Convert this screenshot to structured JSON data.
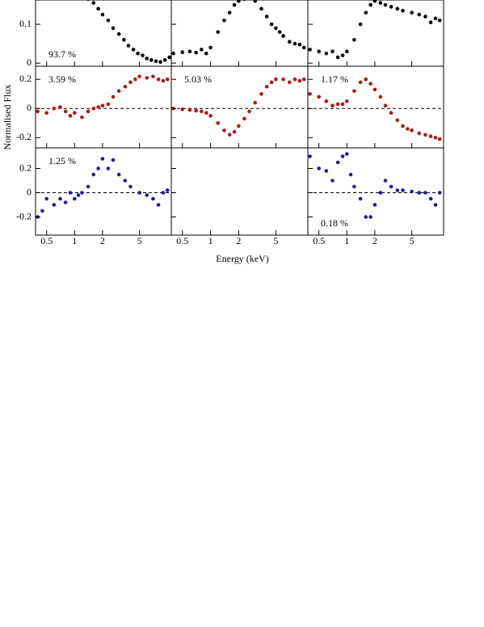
{
  "xlabel": "Energy (keV)",
  "ylabel": "Normalised Flux",
  "chart_data": [
    {
      "type": "scatter",
      "log_x": true,
      "xlim": [
        0.38,
        11
      ],
      "ylim": [
        -0.008,
        0.1625
      ],
      "xticks": [
        0.5,
        1,
        2,
        5
      ],
      "yticks": [
        0,
        0.1
      ],
      "annotation": "93.7 %",
      "annotation_corner": "bottom-left",
      "x": [
        1.4,
        1.6,
        1.8,
        2.0,
        2.3,
        2.6,
        3.0,
        3.4,
        3.8,
        4.3,
        4.8,
        5.4,
        6.0,
        6.7,
        7.5,
        8.4,
        9.4,
        10.5
      ],
      "series": [
        {
          "color": "#000000",
          "values": [
            0.165,
            0.155,
            0.14,
            0.125,
            0.11,
            0.09,
            0.075,
            0.06,
            0.045,
            0.035,
            0.025,
            0.02,
            0.012,
            0.008,
            0.005,
            0.003,
            0.008,
            0.015
          ]
        }
      ]
    },
    {
      "type": "scatter",
      "log_x": true,
      "xlim": [
        0.38,
        11
      ],
      "ylim": [
        -0.008,
        0.1625
      ],
      "xticks": [
        0.5,
        1,
        2,
        5
      ],
      "yticks": [
        0,
        0.1
      ],
      "x": [
        0.4,
        0.5,
        0.6,
        0.7,
        0.8,
        0.9,
        1.0,
        1.2,
        1.4,
        1.6,
        1.8,
        2.0,
        2.3,
        2.6,
        3.0,
        3.5,
        4.0,
        4.5,
        5.0,
        5.5,
        6.0,
        7.0,
        8.0,
        9.0,
        10
      ],
      "series": [
        {
          "color": "#000000",
          "values": [
            0.025,
            0.028,
            0.03,
            0.027,
            0.035,
            0.025,
            0.04,
            0.08,
            0.11,
            0.13,
            0.15,
            0.16,
            0.165,
            0.17,
            0.16,
            0.14,
            0.12,
            0.1,
            0.09,
            0.08,
            0.07,
            0.055,
            0.05,
            0.048,
            0.04
          ]
        }
      ]
    },
    {
      "type": "scatter",
      "log_x": true,
      "xlim": [
        0.38,
        11
      ],
      "ylim": [
        -0.008,
        0.1625
      ],
      "xticks": [
        0.5,
        1,
        2,
        5
      ],
      "yticks": [
        0,
        0.1
      ],
      "x": [
        0.4,
        0.5,
        0.6,
        0.7,
        0.8,
        0.9,
        1.0,
        1.2,
        1.4,
        1.6,
        1.8,
        2.0,
        2.3,
        2.6,
        3.0,
        3.5,
        4.0,
        5,
        6,
        7,
        8,
        9,
        10
      ],
      "series": [
        {
          "color": "#000000",
          "values": [
            0.035,
            0.03,
            0.025,
            0.03,
            0.015,
            0.02,
            0.03,
            0.06,
            0.1,
            0.13,
            0.15,
            0.16,
            0.155,
            0.15,
            0.145,
            0.14,
            0.135,
            0.13,
            0.125,
            0.12,
            0.105,
            0.115,
            0.11
          ]
        }
      ]
    },
    {
      "type": "scatter",
      "log_x": true,
      "xlim": [
        0.38,
        11
      ],
      "ylim": [
        -0.27,
        0.29
      ],
      "xticks": [
        0.5,
        1,
        2,
        5
      ],
      "yticks": [
        -0.2,
        0,
        0.2
      ],
      "zero_line": true,
      "annotation": "3.59 %",
      "annotation_corner": "top-left",
      "x": [
        0.4,
        0.5,
        0.6,
        0.7,
        0.8,
        0.9,
        1.0,
        1.2,
        1.4,
        1.6,
        1.8,
        2.0,
        2.3,
        2.6,
        3.0,
        3.5,
        4.0,
        4.5,
        5.0,
        6.0,
        7.0,
        8.0,
        9.0,
        10
      ],
      "series": [
        {
          "color": "#b01818",
          "values": [
            -0.02,
            -0.03,
            0,
            0.01,
            -0.02,
            -0.05,
            -0.03,
            -0.06,
            -0.02,
            0.0,
            0.01,
            0.02,
            0.03,
            0.08,
            0.12,
            0.15,
            0.18,
            0.2,
            0.22,
            0.21,
            0.22,
            0.2,
            0.19,
            0.2
          ]
        }
      ]
    },
    {
      "type": "scatter",
      "log_x": true,
      "xlim": [
        0.38,
        11
      ],
      "ylim": [
        -0.27,
        0.29
      ],
      "xticks": [
        0.5,
        1,
        2,
        5
      ],
      "yticks": [
        -0.2,
        0,
        0.2
      ],
      "zero_line": true,
      "annotation": "5.03 %",
      "annotation_corner": "top-left",
      "x": [
        0.4,
        0.5,
        0.6,
        0.7,
        0.8,
        0.9,
        1.0,
        1.2,
        1.4,
        1.6,
        1.8,
        2.0,
        2.3,
        2.6,
        3.0,
        3.5,
        4.0,
        4.5,
        5.0,
        6.0,
        7.0,
        8.0,
        9,
        10
      ],
      "series": [
        {
          "color": "#b01818",
          "values": [
            0,
            -0.005,
            -0.01,
            -0.015,
            -0.02,
            -0.03,
            -0.05,
            -0.1,
            -0.15,
            -0.18,
            -0.16,
            -0.12,
            -0.07,
            -0.02,
            0.04,
            0.1,
            0.15,
            0.18,
            0.2,
            0.2,
            0.18,
            0.2,
            0.19,
            0.2
          ]
        }
      ]
    },
    {
      "type": "scatter",
      "log_x": true,
      "xlim": [
        0.38,
        11
      ],
      "ylim": [
        -0.27,
        0.29
      ],
      "xticks": [
        0.5,
        1,
        2,
        5
      ],
      "yticks": [
        -0.2,
        0,
        0.2
      ],
      "zero_line": true,
      "annotation": "1.17 %",
      "annotation_corner": "top-left",
      "x": [
        0.4,
        0.5,
        0.6,
        0.7,
        0.8,
        0.9,
        1.0,
        1.2,
        1.4,
        1.6,
        1.8,
        2.0,
        2.3,
        2.6,
        3.0,
        3.5,
        4.0,
        4.5,
        5.0,
        6.0,
        7,
        8,
        9,
        10
      ],
      "series": [
        {
          "color": "#b01818",
          "values": [
            0.1,
            0.08,
            0.05,
            0.02,
            0.03,
            0.03,
            0.05,
            0.12,
            0.18,
            0.2,
            0.17,
            0.13,
            0.08,
            0.02,
            -0.03,
            -0.08,
            -0.12,
            -0.14,
            -0.15,
            -0.17,
            -0.18,
            -0.19,
            -0.2,
            -0.21
          ]
        }
      ]
    },
    {
      "type": "scatter",
      "log_x": true,
      "xlim": [
        0.38,
        11
      ],
      "ylim": [
        -0.35,
        0.37
      ],
      "xticks": [
        0.5,
        1,
        2,
        5
      ],
      "yticks": [
        -0.2,
        0,
        0.2
      ],
      "zero_line": true,
      "annotation": "1.25 %",
      "annotation_corner": "top-left",
      "x": [
        0.4,
        0.45,
        0.5,
        0.6,
        0.7,
        0.8,
        0.9,
        1.0,
        1.1,
        1.2,
        1.4,
        1.6,
        1.8,
        2.0,
        2.3,
        2.6,
        3.0,
        3.5,
        4.0,
        5.0,
        6.0,
        7.0,
        8.0,
        9,
        10
      ],
      "series": [
        {
          "color": "#1a1aa0",
          "values": [
            -0.2,
            -0.15,
            -0.05,
            -0.1,
            -0.05,
            -0.08,
            0.0,
            -0.05,
            -0.02,
            0,
            0.05,
            0.15,
            0.2,
            0.28,
            0.2,
            0.27,
            0.15,
            0.1,
            0.05,
            0.0,
            -0.02,
            -0.05,
            -0.1,
            0,
            0.02
          ]
        }
      ]
    },
    {
      "type": "scatter",
      "log_x": true,
      "xlim": [
        0.38,
        11
      ],
      "ylim": [
        -0.35,
        0.37
      ],
      "xticks": [
        0.5,
        1,
        2,
        5
      ],
      "yticks": [
        -0.2,
        0,
        0.2
      ],
      "x": [],
      "series": []
    },
    {
      "type": "scatter",
      "log_x": true,
      "xlim": [
        0.38,
        11
      ],
      "ylim": [
        -0.35,
        0.37
      ],
      "xticks": [
        0.5,
        1,
        2,
        5
      ],
      "yticks": [
        -0.2,
        0,
        0.2
      ],
      "zero_line": true,
      "annotation": "0.18 %",
      "annotation_corner": "bottom-left",
      "x": [
        0.4,
        0.5,
        0.6,
        0.7,
        0.8,
        0.9,
        1.0,
        1.1,
        1.2,
        1.4,
        1.6,
        1.8,
        2.0,
        2.3,
        2.6,
        3.0,
        3.5,
        4.0,
        5.0,
        6.0,
        7.0,
        8.0,
        9.0,
        10
      ],
      "series": [
        {
          "color": "#1a1aa0",
          "values": [
            0.3,
            0.2,
            0.18,
            0.1,
            0.25,
            0.3,
            0.32,
            0.15,
            0.05,
            -0.05,
            -0.2,
            -0.2,
            -0.1,
            0.0,
            0.1,
            0.05,
            0.02,
            0.02,
            0.01,
            0.0,
            0.0,
            -0.05,
            -0.1,
            0.0
          ]
        }
      ]
    }
  ]
}
